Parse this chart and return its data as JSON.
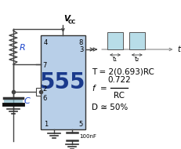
{
  "ic_color": "#b8cfe8",
  "ic_border": "#333333",
  "wire_color": "#444444",
  "text_color": "#000000",
  "blue_text": "#1a44cc",
  "cap_fill": "#88bbcc",
  "signal_color": "#b8dde8",
  "signal_border": "#555555",
  "ic_label": "555",
  "pin4": "4",
  "pin8": "8",
  "pin3": "3",
  "pin7": "7",
  "pin2": "2",
  "pin6": "6",
  "pin1": "1",
  "pin5": "5",
  "R_label": "R",
  "C_label": "C",
  "cap_val": "100nF",
  "formula_T": "T = 2(0.693)RC",
  "formula_f_num": "0.722",
  "formula_f_den": "RC",
  "formula_D": "D ≅ 50%",
  "t1_label": "t₁",
  "t2_label": "t₂",
  "t_label": "t"
}
